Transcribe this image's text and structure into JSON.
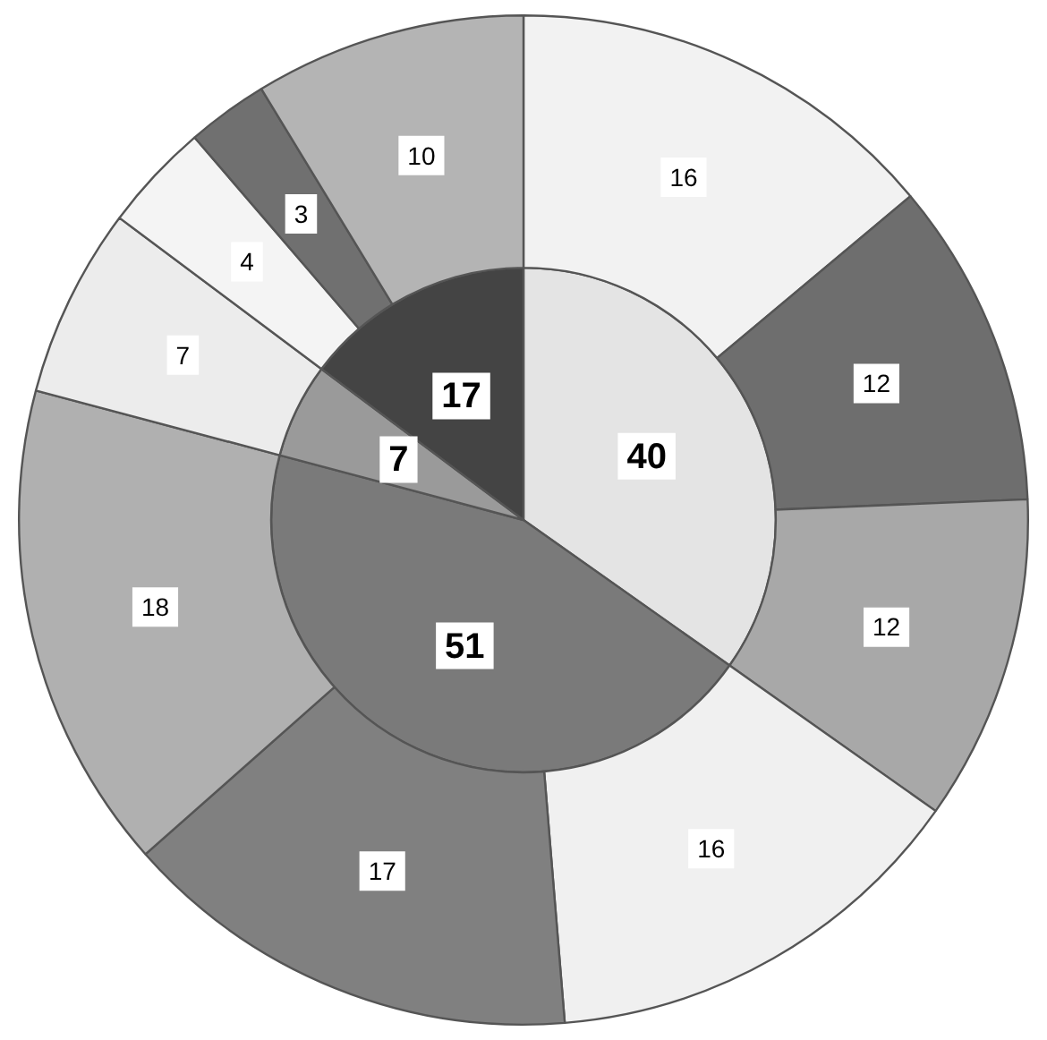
{
  "chart_data": {
    "type": "pie",
    "data_labels": true,
    "legend": false,
    "series": [
      {
        "values": [
          40,
          51,
          7,
          17
        ],
        "colors": [
          "#e4e4e4",
          "#7a7a7a",
          "#9a9a9a",
          "#444444"
        ]
      },
      {
        "values": [
          16,
          12,
          12,
          16,
          17,
          18,
          7,
          4,
          3,
          10
        ],
        "colors": [
          "#f2f2f2",
          "#6e6e6e",
          "#a8a8a8",
          "#f0f0f0",
          "#808080",
          "#b0b0b0",
          "#ececec",
          "#f4f4f4",
          "#707070",
          "#b4b4b4"
        ]
      }
    ]
  }
}
